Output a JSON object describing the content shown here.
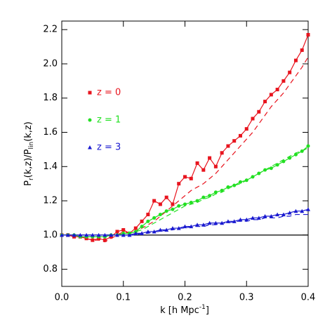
{
  "chart_data": {
    "type": "line",
    "xlabel_parts": [
      "k [h Mpc",
      "-1",
      "]"
    ],
    "ylabel_parts": [
      "P",
      "r",
      "(k,z)/P",
      "lin",
      "(k,z)"
    ],
    "x": [
      0,
      0.01,
      0.02,
      0.03,
      0.04,
      0.05,
      0.06,
      0.07,
      0.08,
      0.09,
      0.1,
      0.11,
      0.12,
      0.13,
      0.14,
      0.15,
      0.16,
      0.17,
      0.18,
      0.19,
      0.2,
      0.21,
      0.22,
      0.23,
      0.24,
      0.25,
      0.26,
      0.27,
      0.28,
      0.29,
      0.3,
      0.31,
      0.32,
      0.33,
      0.34,
      0.35,
      0.36,
      0.37,
      0.38,
      0.39,
      0.4
    ],
    "series": [
      {
        "name": "z = 0",
        "color": "#e8141e",
        "marker": "square",
        "values": [
          1,
          1,
          0.99,
          0.99,
          0.98,
          0.97,
          0.98,
          0.97,
          0.99,
          1.02,
          1.03,
          1.01,
          1.04,
          1.08,
          1.12,
          1.2,
          1.18,
          1.22,
          1.18,
          1.3,
          1.34,
          1.33,
          1.42,
          1.38,
          1.45,
          1.4,
          1.48,
          1.52,
          1.55,
          1.58,
          1.62,
          1.68,
          1.72,
          1.78,
          1.82,
          1.85,
          1.9,
          1.95,
          2.02,
          2.08,
          2.17
        ]
      },
      {
        "color": "#e8141e",
        "dash": true,
        "values": [
          1,
          1,
          0.99,
          0.99,
          0.98,
          0.97,
          0.97,
          0.96,
          0.98,
          1,
          1.02,
          1.01,
          1.02,
          1.04,
          1.06,
          1.08,
          1.11,
          1.14,
          1.17,
          1.2,
          1.23,
          1.26,
          1.28,
          1.3,
          1.33,
          1.36,
          1.4,
          1.44,
          1.48,
          1.52,
          1.56,
          1.6,
          1.65,
          1.7,
          1.75,
          1.79,
          1.83,
          1.88,
          1.93,
          1.98,
          2.04
        ]
      },
      {
        "name": "z = 1",
        "color": "#22e022",
        "marker": "circle",
        "values": [
          1,
          1,
          1,
          0.99,
          0.99,
          0.99,
          0.99,
          0.99,
          1,
          1,
          1.01,
          1.01,
          1.02,
          1.05,
          1.08,
          1.1,
          1.12,
          1.14,
          1.15,
          1.17,
          1.18,
          1.19,
          1.2,
          1.22,
          1.23,
          1.25,
          1.26,
          1.28,
          1.29,
          1.31,
          1.32,
          1.34,
          1.36,
          1.38,
          1.39,
          1.41,
          1.43,
          1.45,
          1.47,
          1.49,
          1.52
        ]
      },
      {
        "color": "#22e022",
        "dash": true,
        "values": [
          1,
          1,
          1,
          0.99,
          0.99,
          0.99,
          0.99,
          0.99,
          1,
          1,
          1,
          1.01,
          1.02,
          1.03,
          1.05,
          1.07,
          1.09,
          1.11,
          1.13,
          1.15,
          1.17,
          1.18,
          1.19,
          1.21,
          1.22,
          1.24,
          1.25,
          1.27,
          1.29,
          1.3,
          1.32,
          1.34,
          1.36,
          1.38,
          1.4,
          1.42,
          1.44,
          1.46,
          1.48,
          1.49,
          1.51
        ]
      },
      {
        "name": "z = 3",
        "color": "#1a1ad0",
        "marker": "triangle",
        "values": [
          1,
          1,
          1,
          1,
          1,
          1,
          1,
          1,
          1,
          1,
          1,
          1,
          1.01,
          1.01,
          1.02,
          1.02,
          1.03,
          1.03,
          1.04,
          1.04,
          1.05,
          1.05,
          1.06,
          1.06,
          1.07,
          1.07,
          1.07,
          1.08,
          1.08,
          1.09,
          1.09,
          1.1,
          1.1,
          1.11,
          1.11,
          1.12,
          1.12,
          1.13,
          1.14,
          1.14,
          1.15
        ]
      },
      {
        "color": "#1a1ad0",
        "dash": true,
        "values": [
          1,
          1,
          1,
          1,
          1,
          1,
          1,
          1,
          1,
          1,
          1,
          1,
          1,
          1.01,
          1.01,
          1.02,
          1.02,
          1.03,
          1.03,
          1.04,
          1.04,
          1.05,
          1.05,
          1.05,
          1.06,
          1.06,
          1.07,
          1.07,
          1.08,
          1.08,
          1.08,
          1.09,
          1.09,
          1.1,
          1.1,
          1.1,
          1.11,
          1.11,
          1.12,
          1.12,
          1.12
        ]
      }
    ],
    "hline": {
      "value": 1,
      "color": "#000000"
    },
    "legend": "upper left",
    "xlim": [
      0,
      0.4
    ],
    "xticks": [
      {
        "value": 0,
        "label": "0.0"
      },
      0.1,
      0.2,
      0.3,
      0.4
    ],
    "ylim": [
      0.7,
      2.25
    ],
    "yticks": [
      0.8,
      {
        "value": 1,
        "label": "1.0"
      },
      1.2,
      1.4,
      1.6,
      1.8,
      {
        "value": 2,
        "label": "2.0"
      },
      2.2
    ]
  }
}
